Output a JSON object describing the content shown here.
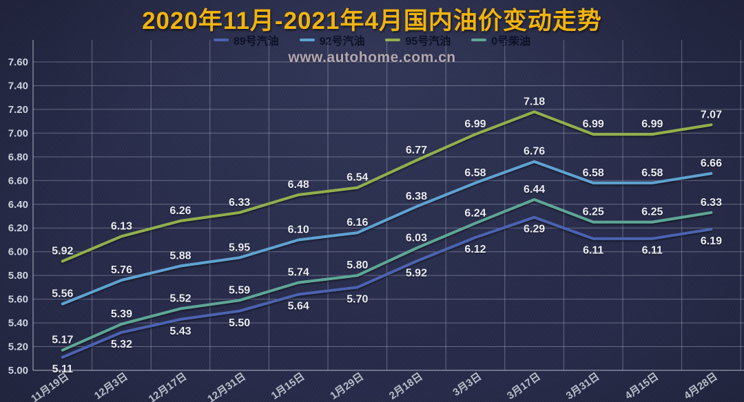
{
  "page": {
    "title": "2020年11月-2021年4月国内油价变动走势",
    "title_color": "#f3b30c",
    "watermark": "www.autohome.com.cn",
    "background_color": "#272b49"
  },
  "chart_data": {
    "type": "line",
    "title": "2020年11月-2021年4月国内油价变动走势",
    "xlabel": "",
    "ylabel": "",
    "ylim": [
      5.0,
      7.6
    ],
    "y_tick_step": 0.2,
    "y_tick_labels": [
      "5.00",
      "5.20",
      "5.40",
      "5.60",
      "5.80",
      "6.00",
      "6.20",
      "6.40",
      "6.60",
      "6.80",
      "7.00",
      "7.20",
      "7.40",
      "7.60"
    ],
    "grid": true,
    "legend_position": "top",
    "label_format": "0.00",
    "x_label_rotation": -35,
    "categories": [
      "11月19日",
      "12月3日",
      "12月17日",
      "12月31日",
      "1月15日",
      "1月29日",
      "2月18日",
      "3月3日",
      "3月17日",
      "3月31日",
      "4月15日",
      "4月28日"
    ],
    "series": [
      {
        "name": "89号汽油",
        "color": "#4c63b0",
        "label_position": "below",
        "values": [
          5.11,
          5.32,
          5.43,
          5.5,
          5.64,
          5.7,
          5.92,
          6.12,
          6.29,
          6.11,
          6.11,
          6.19
        ]
      },
      {
        "name": "92号汽油",
        "color": "#5ea3d2",
        "label_position": "above",
        "values": [
          5.56,
          5.76,
          5.88,
          5.95,
          6.1,
          6.16,
          6.38,
          6.58,
          6.76,
          6.58,
          6.58,
          6.66
        ]
      },
      {
        "name": "95号汽油",
        "color": "#93b04d",
        "label_position": "above",
        "values": [
          5.92,
          6.13,
          6.26,
          6.33,
          6.48,
          6.54,
          6.77,
          6.99,
          7.18,
          6.99,
          6.99,
          7.07
        ]
      },
      {
        "name": "0号柴油",
        "color": "#5fa796",
        "label_position": "above",
        "values": [
          5.17,
          5.39,
          5.52,
          5.59,
          5.74,
          5.8,
          6.03,
          6.24,
          6.44,
          6.25,
          6.25,
          6.33
        ]
      }
    ]
  }
}
